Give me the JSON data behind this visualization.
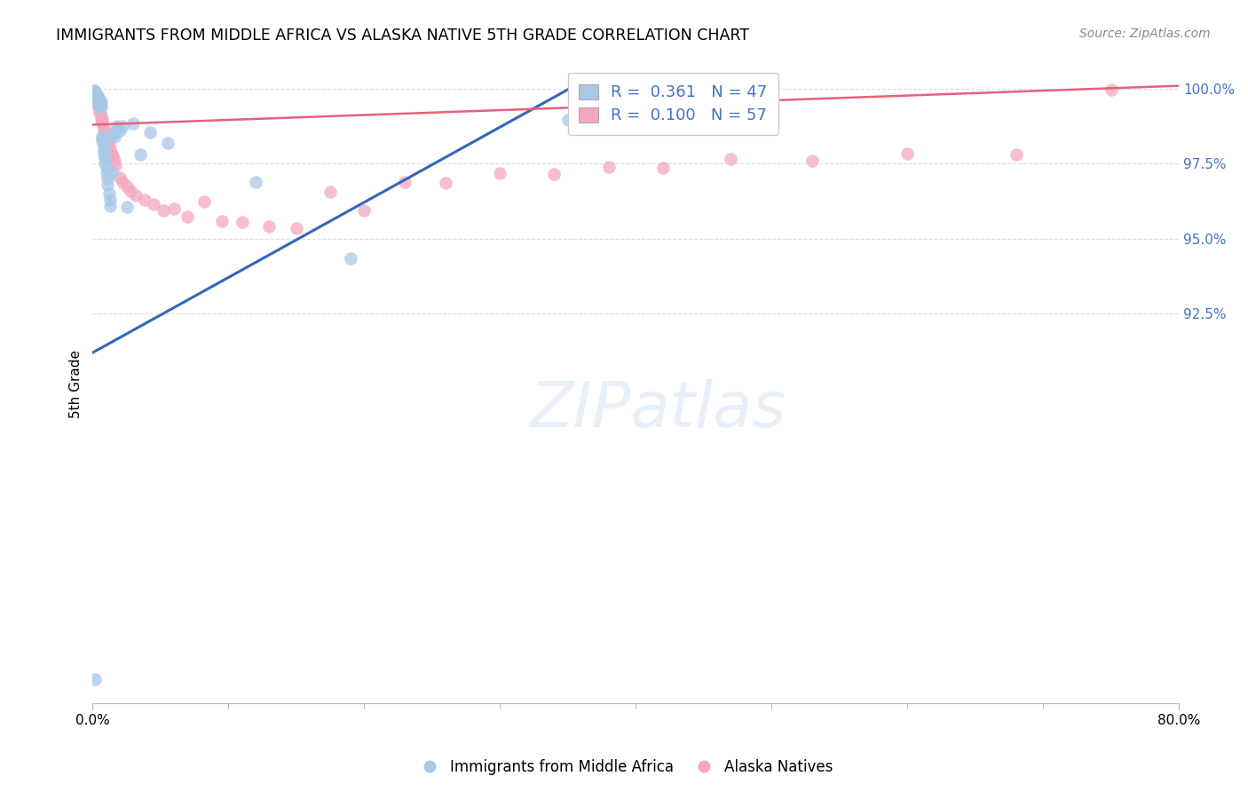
{
  "title": "IMMIGRANTS FROM MIDDLE AFRICA VS ALASKA NATIVE 5TH GRADE CORRELATION CHART",
  "source": "Source: ZipAtlas.com",
  "ylabel": "5th Grade",
  "xlim": [
    0.0,
    0.8
  ],
  "ylim": [
    0.795,
    1.008
  ],
  "yticks": [
    0.925,
    0.95,
    0.975,
    1.0
  ],
  "ytick_labels": [
    "92.5%",
    "95.0%",
    "97.5%",
    "100.0%"
  ],
  "blue_R": 0.361,
  "blue_N": 47,
  "pink_R": 0.1,
  "pink_N": 57,
  "blue_color": "#a8c8e8",
  "pink_color": "#f4a8c0",
  "blue_line_color": "#3366bb",
  "pink_line_color": "#e8607a",
  "legend_label_blue": "Immigrants from Middle Africa",
  "legend_label_pink": "Alaska Natives",
  "blue_line_x0": 0.0,
  "blue_line_y0": 0.912,
  "blue_line_x1": 0.355,
  "blue_line_y1": 1.001,
  "pink_line_x0": 0.0,
  "pink_line_y0": 0.988,
  "pink_line_x1": 0.8,
  "pink_line_y1": 1.001,
  "blue_x": [
    0.001,
    0.001,
    0.002,
    0.002,
    0.002,
    0.003,
    0.003,
    0.003,
    0.004,
    0.004,
    0.004,
    0.005,
    0.005,
    0.005,
    0.006,
    0.006,
    0.007,
    0.007,
    0.007,
    0.008,
    0.008,
    0.008,
    0.009,
    0.009,
    0.01,
    0.01,
    0.011,
    0.011,
    0.012,
    0.013,
    0.013,
    0.014,
    0.015,
    0.016,
    0.017,
    0.018,
    0.02,
    0.022,
    0.025,
    0.03,
    0.035,
    0.042,
    0.055,
    0.12,
    0.19,
    0.35,
    0.002
  ],
  "blue_y": [
    0.9995,
    0.9985,
    0.999,
    0.998,
    0.997,
    0.998,
    0.997,
    0.996,
    0.9975,
    0.996,
    0.9955,
    0.9965,
    0.994,
    0.9955,
    0.9955,
    0.994,
    0.984,
    0.9835,
    0.9825,
    0.981,
    0.9795,
    0.978,
    0.977,
    0.975,
    0.974,
    0.972,
    0.97,
    0.968,
    0.965,
    0.963,
    0.961,
    0.972,
    0.985,
    0.984,
    0.9855,
    0.987,
    0.986,
    0.9875,
    0.9605,
    0.9885,
    0.978,
    0.9855,
    0.982,
    0.969,
    0.9435,
    0.9895,
    0.803
  ],
  "pink_x": [
    0.001,
    0.001,
    0.001,
    0.002,
    0.002,
    0.002,
    0.003,
    0.003,
    0.004,
    0.004,
    0.005,
    0.005,
    0.006,
    0.006,
    0.007,
    0.007,
    0.008,
    0.008,
    0.009,
    0.01,
    0.01,
    0.011,
    0.012,
    0.013,
    0.014,
    0.015,
    0.016,
    0.017,
    0.018,
    0.02,
    0.022,
    0.025,
    0.028,
    0.032,
    0.038,
    0.045,
    0.052,
    0.06,
    0.07,
    0.082,
    0.095,
    0.11,
    0.13,
    0.15,
    0.175,
    0.2,
    0.23,
    0.26,
    0.3,
    0.34,
    0.38,
    0.42,
    0.47,
    0.53,
    0.6,
    0.68,
    0.75
  ],
  "pink_y": [
    0.9995,
    0.998,
    0.9965,
    0.9985,
    0.997,
    0.996,
    0.9975,
    0.9965,
    0.9955,
    0.9945,
    0.9935,
    0.992,
    0.991,
    0.99,
    0.9895,
    0.9885,
    0.987,
    0.986,
    0.985,
    0.9845,
    0.9835,
    0.982,
    0.981,
    0.9795,
    0.978,
    0.9775,
    0.976,
    0.9745,
    0.9875,
    0.9705,
    0.969,
    0.9675,
    0.966,
    0.9645,
    0.963,
    0.9615,
    0.9595,
    0.96,
    0.9575,
    0.9625,
    0.956,
    0.9555,
    0.954,
    0.9535,
    0.9655,
    0.9595,
    0.969,
    0.9685,
    0.972,
    0.9715,
    0.974,
    0.9735,
    0.9765,
    0.976,
    0.9785,
    0.9782,
    0.9998
  ]
}
